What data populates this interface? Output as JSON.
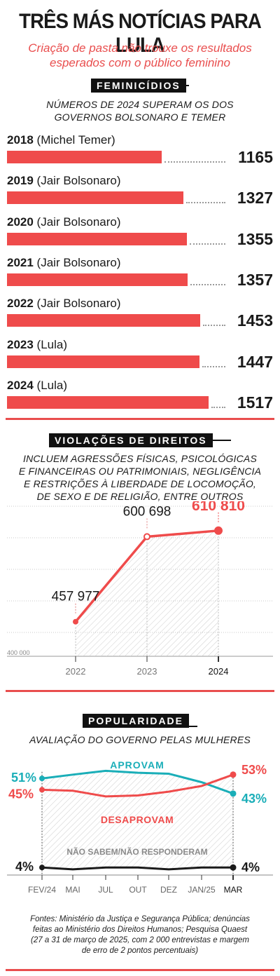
{
  "header": {
    "title": "TRÊS MÁS NOTÍCIAS PARA LULA",
    "subtitle_line1": "Criação de pasta não trouxe os resultados",
    "subtitle_line2": "esperados com o público feminino"
  },
  "colors": {
    "red": "#ef4b4b",
    "teal": "#1aaeb8",
    "dark": "#1a1a1a"
  },
  "chart_data": [
    {
      "type": "bar",
      "section_tag": "FEMINICÍDIOS",
      "title_line1": "NÚMEROS DE 2024 SUPERAM OS DOS",
      "title_line2": "GOVERNOS BOLSONARO E TEMER",
      "rows": [
        {
          "year": "2018",
          "gov": "(Michel Temer)",
          "value": 1165,
          "label": "1165"
        },
        {
          "year": "2019",
          "gov": "(Jair Bolsonaro)",
          "value": 1327,
          "label": "1327"
        },
        {
          "year": "2020",
          "gov": "(Jair Bolsonaro)",
          "value": 1355,
          "label": "1355"
        },
        {
          "year": "2021",
          "gov": "(Jair Bolsonaro)",
          "value": 1357,
          "label": "1357"
        },
        {
          "year": "2022",
          "gov": "(Jair Bolsonaro)",
          "value": 1453,
          "label": "1453"
        },
        {
          "year": "2023",
          "gov": "(Lula)",
          "value": 1447,
          "label": "1447"
        },
        {
          "year": "2024",
          "gov": "(Lula)",
          "value": 1517,
          "label": "1517"
        }
      ],
      "xlim": [
        0,
        1517
      ]
    },
    {
      "type": "line",
      "section_tag": "VIOLAÇÕES DE DIREITOS",
      "title_lines": [
        "INCLUEM AGRESSÕES FÍSICAS, PSICOLÓGICAS",
        "E FINANCEIRAS OU PATRIMONIAIS, NEGLIGÊNCIA",
        "E RESTRIÇÕES À LIBERDADE DE LOCOMOÇÃO,",
        "DE SEXO E DE RELIGIÃO, ENTRE OUTROS"
      ],
      "x": [
        "2022",
        "2023",
        "2024"
      ],
      "values": [
        457977,
        600698,
        610810
      ],
      "labels": [
        "457 977",
        "600 698",
        "610 810"
      ],
      "ymin_label": "400 000",
      "ylim": [
        400000,
        660000
      ]
    },
    {
      "type": "line",
      "section_tag": "POPULARIDADE",
      "title": "AVALIAÇÃO DO GOVERNO PELAS MULHERES",
      "x": [
        "FEV/24",
        "MAI",
        "JUL",
        "OUT",
        "DEZ",
        "JAN/25",
        "MAR"
      ],
      "ylim": [
        0,
        60
      ],
      "series": [
        {
          "name": "APROVAM",
          "values": [
            51,
            53,
            55,
            54,
            53.5,
            49,
            43
          ],
          "start_label": "51%",
          "end_label": "43%"
        },
        {
          "name": "DESAPROVAM",
          "values": [
            45,
            44.5,
            41.5,
            42,
            44,
            47,
            53
          ],
          "start_label": "45%",
          "end_label": "53%"
        },
        {
          "name": "NÃO SABEM/NÃO RESPONDERAM",
          "values": [
            4,
            3,
            4,
            4,
            3,
            4,
            4
          ],
          "start_label": "4%",
          "end_label": "4%"
        }
      ]
    }
  ],
  "sources": {
    "line1": "Fontes: Ministério da Justiça e Segurança Pública; denúncias",
    "line2": "feitas ao Ministério dos Direitos Humanos; Pesquisa Quaest",
    "line3": "(27 a 31 de março de 2025, com 2 000 entrevistas e margem",
    "line4": "de erro de 2 pontos percentuais)"
  }
}
